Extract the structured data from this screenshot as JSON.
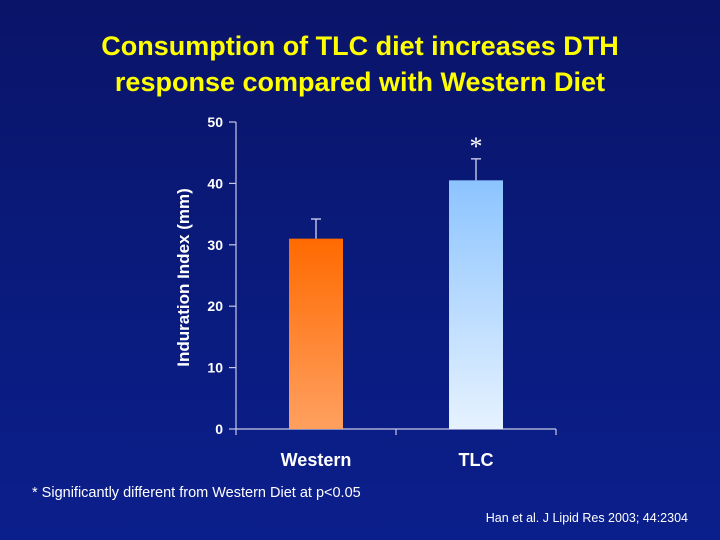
{
  "title": {
    "line1": "Consumption of TLC diet increases DTH",
    "line2": "response compared with Western Diet"
  },
  "footnote": "* Significantly different from Western Diet at p<0.05",
  "citation": "Han et al. J Lipid Res 2003; 44:2304",
  "chart_data": {
    "type": "bar",
    "title": "Consumption of TLC diet increases DTH response compared with Western Diet",
    "xlabel": "",
    "ylabel": "Induration Index (mm)",
    "categories": [
      "Western",
      "TLC"
    ],
    "values": [
      31,
      40.5
    ],
    "error_upper": [
      34.2,
      44
    ],
    "significance_markers": [
      "",
      "*"
    ],
    "ylim": [
      0,
      50
    ],
    "yticks": [
      0,
      10,
      20,
      30,
      40,
      50
    ],
    "grid": false,
    "colors": {
      "Western": {
        "top": "#ff6a00",
        "bottom": "#ffa060"
      },
      "TLC": {
        "top": "#8cc4ff",
        "bottom": "#e6f2ff"
      }
    },
    "axis_color": "#c8c8e6",
    "text_color": "#ffffff",
    "title_color": "#ffff00"
  }
}
